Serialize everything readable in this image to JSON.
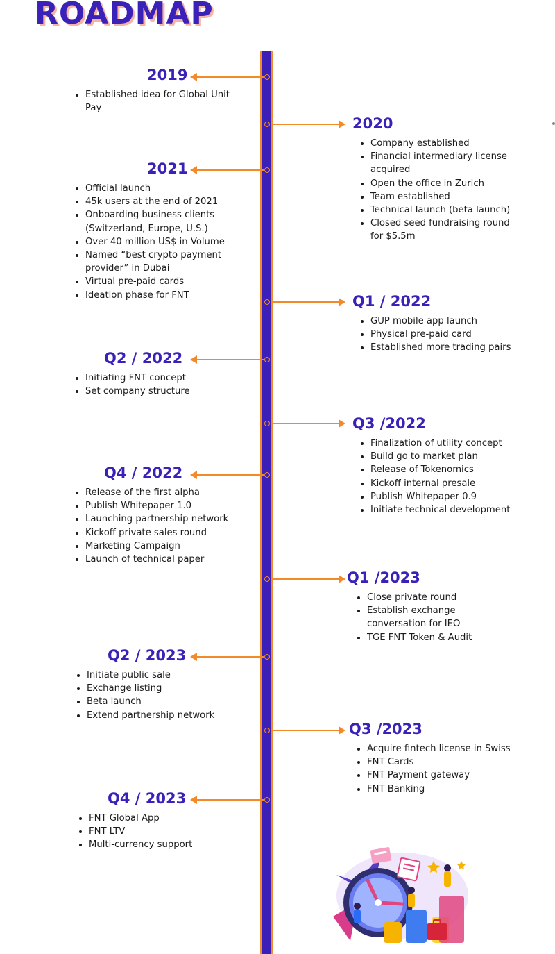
{
  "title": "ROADMAP",
  "milestones": [
    {
      "title": "2019",
      "items": [
        "Established idea for Global Unit Pay"
      ]
    },
    {
      "title": "2020",
      "items": [
        "Company established",
        "Financial intermediary license acquired",
        "Open the office in Zurich",
        "Team established",
        "Technical launch (beta launch)",
        "Closed seed fundraising round for $5.5m"
      ]
    },
    {
      "title": "2021",
      "items": [
        "Official launch",
        "45k users at the end of 2021",
        "Onboarding business clients (Switzerland, Europe, U.S.)",
        "Over 40 million US$ in Volume",
        "Named “best crypto payment provider” in Dubai",
        "Virtual pre-paid cards",
        "Ideation phase for FNT"
      ]
    },
    {
      "title": "Q1 / 2022",
      "items": [
        "GUP mobile app launch",
        "Physical pre-paid card",
        "Established more trading pairs"
      ]
    },
    {
      "title": "Q2 / 2022",
      "items": [
        "Initiating FNT concept",
        "Set company structure"
      ]
    },
    {
      "title": "Q3 /2022",
      "items": [
        "Finalization of utility concept",
        "Build go to market plan",
        "Release of Tokenomics",
        "Kickoff internal presale",
        "Publish Whitepaper 0.9",
        "Initiate technical development"
      ]
    },
    {
      "title": "Q4 / 2022",
      "items": [
        "Release of the first alpha",
        "Publish Whitepaper 1.0",
        "Launching partnership network",
        "Kickoff private sales round",
        "Marketing Campaign",
        "Launch of technical paper"
      ]
    },
    {
      "title": "Q1 /2023",
      "items": [
        "Close private round",
        "Establish exchange conversation for IEO",
        "TGE FNT Token & Audit"
      ]
    },
    {
      "title": "Q2 / 2023",
      "items": [
        "Initiate public sale",
        "Exchange listing",
        "Beta launch",
        "Extend partnership network"
      ]
    },
    {
      "title": "Q3 /2023",
      "items": [
        "Acquire fintech license in Swiss",
        "FNT Cards",
        "FNT Payment gateway",
        "FNT Banking"
      ]
    },
    {
      "title": "Q4 / 2023",
      "items": [
        "FNT Global App",
        "FNT LTV",
        "Multi-currency support"
      ]
    }
  ],
  "colors": {
    "primary": "#3a22b8",
    "accent": "#f28a2a",
    "title_shadow": "#f6b2a4"
  }
}
